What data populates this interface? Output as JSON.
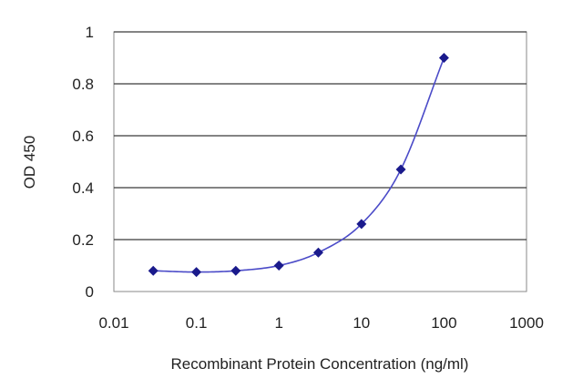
{
  "chart_data": {
    "type": "scatter",
    "xscale": "log",
    "xlabel": "Recombinant Protein Concentration (ng/ml)",
    "ylabel": "OD 450",
    "xlim": [
      0.01,
      1000
    ],
    "ylim": [
      0,
      1
    ],
    "xticks": [
      0.01,
      0.1,
      1,
      10,
      100,
      1000
    ],
    "xtick_labels": [
      "0.01",
      "0.1",
      "1",
      "10",
      "100",
      "1000"
    ],
    "yticks": [
      0,
      0.2,
      0.4,
      0.6,
      0.8,
      1
    ],
    "ytick_labels": [
      "0",
      "0.2",
      "0.4",
      "0.6",
      "0.8",
      "1"
    ],
    "grid": "horizontal",
    "legend": "none",
    "series": [
      {
        "x": [
          0.03,
          0.1,
          0.3,
          1,
          3,
          10,
          30,
          100
        ],
        "y": [
          0.08,
          0.075,
          0.08,
          0.1,
          0.15,
          0.26,
          0.47,
          0.9
        ],
        "marker": "diamond",
        "fit_line": true
      }
    ],
    "colors": {
      "marker": "#1a1a8c",
      "line": "#4b4bc8",
      "grid": "#3a3a3a",
      "frame": "#8a8a8a"
    }
  }
}
